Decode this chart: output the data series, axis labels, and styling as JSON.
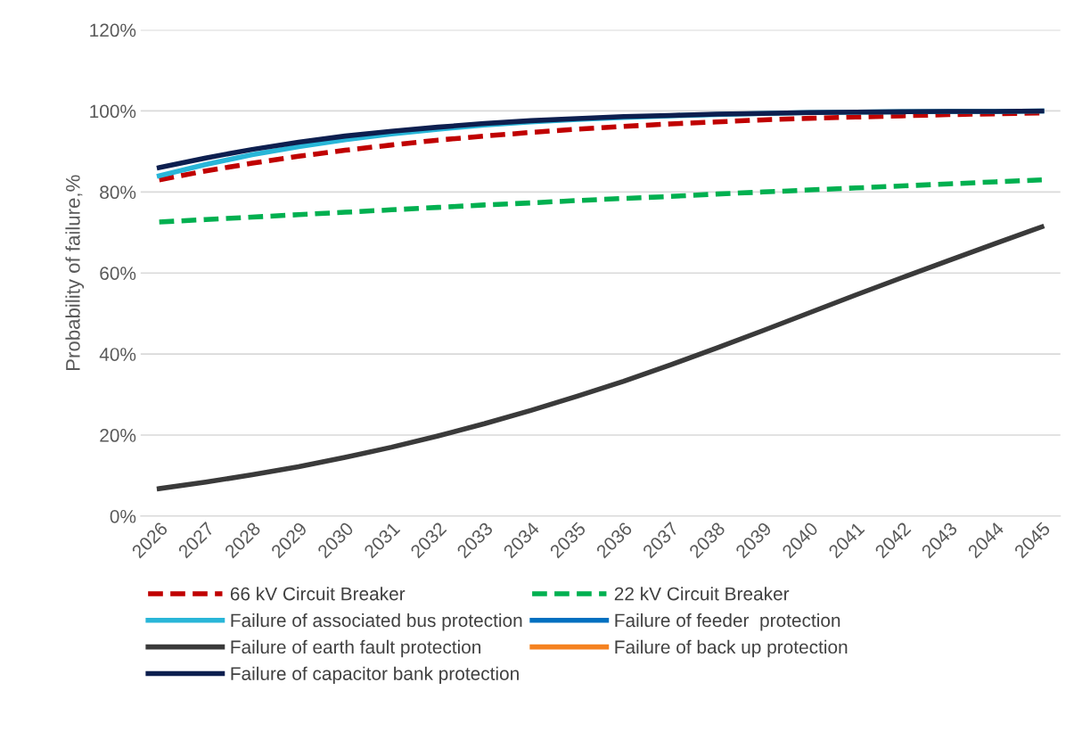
{
  "chart_data": {
    "type": "line",
    "ylabel": "Probability of failure,%",
    "x": [
      "2026",
      "2027",
      "2028",
      "2029",
      "2030",
      "2031",
      "2032",
      "2033",
      "2034",
      "2035",
      "2036",
      "2037",
      "2038",
      "2039",
      "2040",
      "2041",
      "2042",
      "2043",
      "2044",
      "2045"
    ],
    "ylim": [
      0,
      120
    ],
    "yticks": [
      {
        "value": 0,
        "label": "0%"
      },
      {
        "value": 20,
        "label": "20%"
      },
      {
        "value": 40,
        "label": "40%"
      },
      {
        "value": 60,
        "label": "60%"
      },
      {
        "value": 80,
        "label": "80%"
      },
      {
        "value": 100,
        "label": "100%"
      },
      {
        "value": 120,
        "label": "120%"
      }
    ],
    "grid": "y",
    "legend": "bottom",
    "marker": "none",
    "series": [
      {
        "name": "66 kV Circuit Breaker",
        "color": "#c00000",
        "line_style": "dashed",
        "values": [
          83,
          85.2,
          87.1,
          88.8,
          90.3,
          91.6,
          92.8,
          93.8,
          94.7,
          95.5,
          96.2,
          96.8,
          97.3,
          97.8,
          98.2,
          98.5,
          98.8,
          99.1,
          99.3,
          99.5
        ]
      },
      {
        "name": "22 kV Circuit Breaker",
        "color": "#00b050",
        "line_style": "dashed",
        "values": [
          72.6,
          73.2,
          73.8,
          74.4,
          75.0,
          75.6,
          76.2,
          76.8,
          77.3,
          77.9,
          78.4,
          78.9,
          79.5,
          80.0,
          80.5,
          81.0,
          81.5,
          82.0,
          82.5,
          83.0
        ]
      },
      {
        "name": "Failure of associated bus protection",
        "color": "#29b6d8",
        "line_style": "solid",
        "values": [
          84,
          86.8,
          89.2,
          91.2,
          92.9,
          94.3,
          95.5,
          96.5,
          97.3,
          97.9,
          98.4,
          98.8,
          99.1,
          99.4,
          99.6,
          99.7,
          99.8,
          99.9,
          99.9,
          100
        ]
      },
      {
        "name": "Failure of feeder  protection",
        "color": "#0070c0",
        "line_style": "solid",
        "values": [
          null,
          null,
          null,
          null,
          null,
          null,
          null,
          null,
          null,
          null,
          null,
          null,
          null,
          null,
          null,
          null,
          null,
          null,
          null,
          null
        ]
      },
      {
        "name": "Failure of earth fault protection",
        "color": "#3a3a3a",
        "line_style": "solid",
        "values": [
          6.8,
          8.4,
          10.2,
          12.2,
          14.5,
          17.0,
          19.8,
          22.8,
          26.1,
          29.6,
          33.3,
          37.3,
          41.5,
          45.8,
          50.2,
          54.6,
          58.9,
          63.1,
          67.3,
          71.4
        ]
      },
      {
        "name": "Failure of back up protection",
        "color": "#f58220",
        "line_style": "solid",
        "values": [
          null,
          null,
          null,
          null,
          null,
          null,
          null,
          null,
          null,
          null,
          null,
          null,
          null,
          null,
          null,
          null,
          null,
          null,
          null,
          null
        ]
      },
      {
        "name": "Failure of capacitor bank protection",
        "color": "#0d1f4f",
        "line_style": "solid",
        "values": [
          86,
          88.4,
          90.5,
          92.3,
          93.8,
          95.0,
          96.0,
          96.9,
          97.6,
          98.1,
          98.6,
          98.9,
          99.2,
          99.4,
          99.6,
          99.7,
          99.8,
          99.9,
          99.9,
          100
        ]
      }
    ]
  }
}
